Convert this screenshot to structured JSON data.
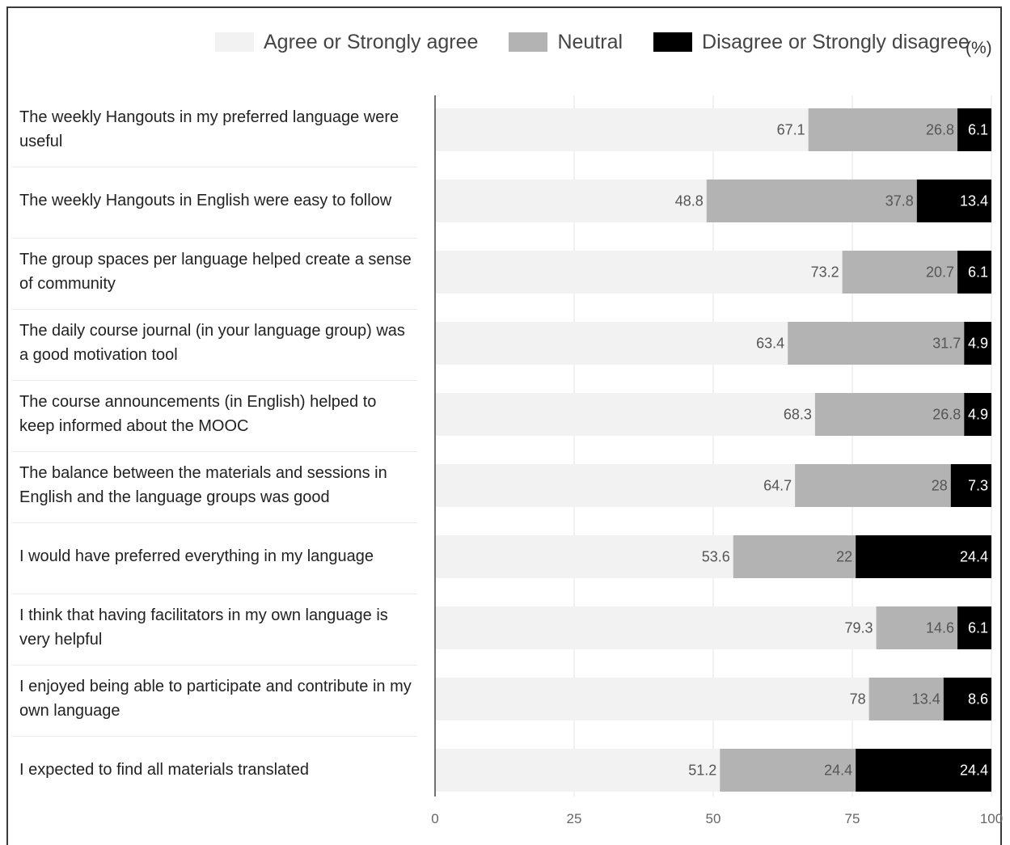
{
  "legend": {
    "items": [
      {
        "label": "Agree or Strongly agree",
        "color": "#f2f2f2"
      },
      {
        "label": "Neutral",
        "color": "#b3b3b3"
      },
      {
        "label": "Disagree or Strongly disagree",
        "color": "#000000"
      }
    ],
    "unit": "(%)"
  },
  "chart_data": {
    "type": "bar",
    "orientation": "horizontal",
    "stacked": true,
    "xlim": [
      0,
      100
    ],
    "xticks": [
      0,
      25,
      50,
      75,
      100
    ],
    "categories": [
      "The weekly Hangouts in my preferred language were useful",
      "The weekly Hangouts in English were easy to follow",
      "The group spaces per language helped create a sense of community",
      "The daily course journal (in your language group) was a good motivation tool",
      "The course announcements (in English) helped to keep informed about the MOOC",
      "The balance between the materials and sessions in English and the language groups was good",
      "I would have preferred everything in my language",
      "I think that having facilitators in my own language is very helpful",
      "I enjoyed being able to participate and contribute in my own language",
      "I expected to find all materials translated"
    ],
    "series": [
      {
        "name": "Agree or Strongly agree",
        "color": "#f2f2f2",
        "label_color": "#555555",
        "values": [
          67.1,
          48.8,
          73.2,
          63.4,
          68.3,
          64.7,
          53.6,
          79.3,
          78,
          51.2
        ]
      },
      {
        "name": "Neutral",
        "color": "#b3b3b3",
        "label_color": "#555555",
        "values": [
          26.8,
          37.8,
          20.7,
          31.7,
          26.8,
          28,
          22,
          14.6,
          13.4,
          24.4
        ]
      },
      {
        "name": "Disagree or Strongly disagree",
        "color": "#000000",
        "label_color": "#ffffff",
        "values": [
          6.1,
          13.4,
          6.1,
          4.9,
          4.9,
          7.3,
          24.4,
          6.1,
          8.6,
          24.4
        ]
      }
    ],
    "grid": true,
    "legend_position": "top"
  }
}
